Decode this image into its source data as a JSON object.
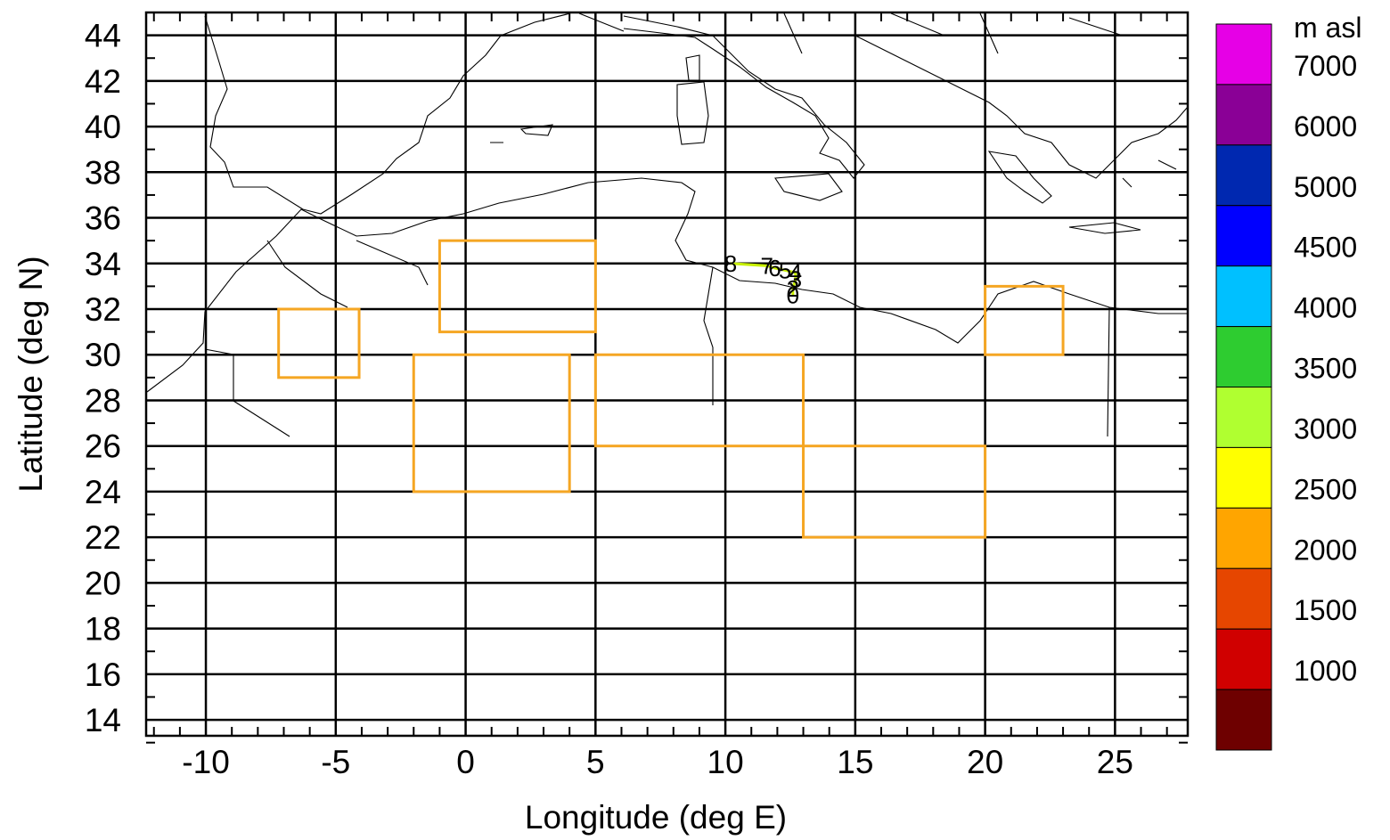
{
  "chart_data": {
    "type": "map",
    "xlabel": "Longitude (deg E)",
    "ylabel": "Latitude (deg N)",
    "xlim": [
      -12.3,
      27.8
    ],
    "ylim": [
      13.3,
      45.0
    ],
    "grid": true,
    "x_ticks": [
      -10,
      -5,
      0,
      5,
      10,
      15,
      20,
      25
    ],
    "x_tick_labels": [
      "-10",
      "-5",
      "0",
      "5",
      "10",
      "15",
      "20",
      "25"
    ],
    "y_ticks": [
      14,
      16,
      18,
      20,
      22,
      24,
      26,
      28,
      30,
      32,
      34,
      36,
      38,
      40,
      42,
      44
    ],
    "y_tick_labels": [
      "14",
      "16",
      "18",
      "20",
      "22",
      "24",
      "26",
      "28",
      "30",
      "32",
      "34",
      "36",
      "38",
      "40",
      "42",
      "44"
    ],
    "regions": [
      {
        "lon": [
          -7.2,
          -4.1
        ],
        "lat": [
          29,
          32
        ],
        "color": "#f5a623"
      },
      {
        "lon": [
          -1,
          5
        ],
        "lat": [
          31,
          35
        ],
        "color": "#f5a623"
      },
      {
        "lon": [
          -2,
          4
        ],
        "lat": [
          24,
          30
        ],
        "color": "#f5a623"
      },
      {
        "lon": [
          5,
          13
        ],
        "lat": [
          26,
          30
        ],
        "color": "#f5a623"
      },
      {
        "lon": [
          13,
          20
        ],
        "lat": [
          22,
          26
        ],
        "color": "#f5a623"
      },
      {
        "lon": [
          20,
          23
        ],
        "lat": [
          30,
          33
        ],
        "color": "#f5a623"
      }
    ],
    "trajectory": {
      "color": "#c8f000",
      "points": [
        {
          "label": "8",
          "lon": 10.2,
          "lat": 34.0
        },
        {
          "label": "7",
          "lon": 11.6,
          "lat": 33.9
        },
        {
          "label": "6",
          "lon": 11.9,
          "lat": 33.8
        },
        {
          "label": "5",
          "lon": 12.3,
          "lat": 33.7
        },
        {
          "label": "4",
          "lon": 12.7,
          "lat": 33.6
        },
        {
          "label": "3",
          "lon": 12.7,
          "lat": 33.3
        },
        {
          "label": "2",
          "lon": 12.6,
          "lat": 32.9
        },
        {
          "label": "0",
          "lon": 12.6,
          "lat": 32.6
        }
      ]
    },
    "colorbar": {
      "unit_label": "m asl",
      "labels": [
        "7000",
        "6000",
        "5000",
        "4500",
        "4000",
        "3500",
        "3000",
        "2500",
        "2000",
        "1500",
        "1000"
      ],
      "colors": [
        "#e600e6",
        "#8a0096",
        "#0028b0",
        "#0000ff",
        "#00c0ff",
        "#2ecc30",
        "#b0ff30",
        "#ffff00",
        "#ffa500",
        "#e64600",
        "#d00000",
        "#6e0000"
      ]
    }
  }
}
